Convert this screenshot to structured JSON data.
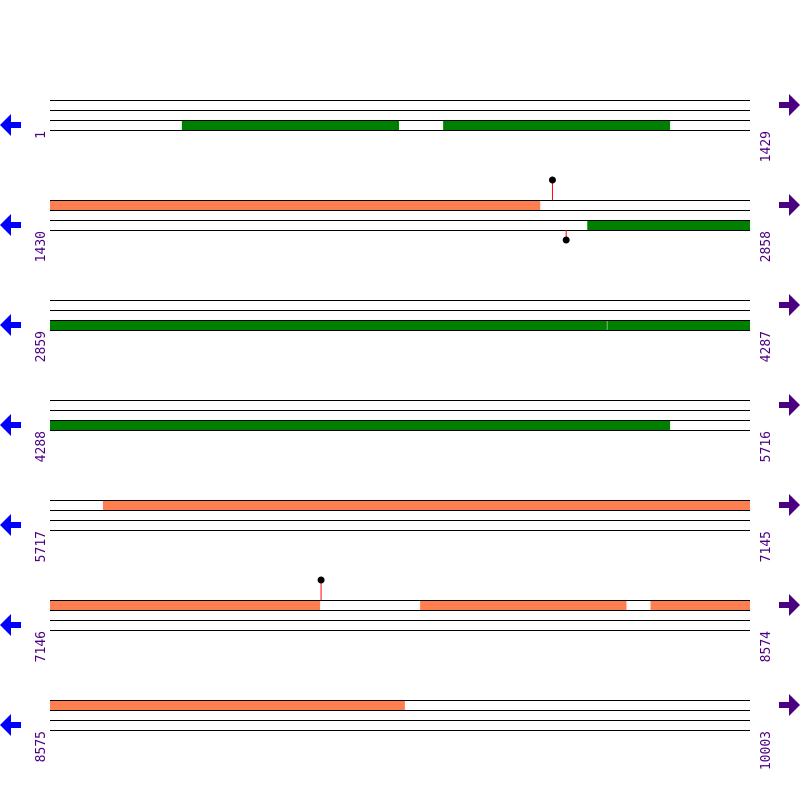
{
  "colors": {
    "forward_feature": "#ff7f50",
    "reverse_feature": "#008000",
    "lollipop_line": "#ff0000",
    "left_arrow": "#0000ff",
    "right_arrow": "#4b0082",
    "label": "#4b0082"
  },
  "icons": {
    "left": "arrow-left-icon",
    "right": "arrow-right-icon"
  },
  "rows": [
    {
      "start": "1",
      "end": "1429",
      "features": [
        {
          "track": "bottom",
          "from": 270,
          "to": 713,
          "color": "#008000"
        },
        {
          "track": "bottom",
          "from": 803,
          "to": 1266,
          "color": "#008000"
        }
      ],
      "markers": []
    },
    {
      "start": "1430",
      "end": "2858",
      "features": [
        {
          "track": "top",
          "from": 1430,
          "to": 2430,
          "color": "#ff7f50"
        },
        {
          "track": "bottom",
          "from": 2526,
          "to": 2858,
          "color": "#008000"
        }
      ],
      "markers": [
        {
          "track": "top",
          "pos": 2455
        },
        {
          "track": "bottom",
          "pos": 2483
        }
      ]
    },
    {
      "start": "2859",
      "end": "4287",
      "features": [
        {
          "track": "bottom",
          "from": 2859,
          "to": 3995,
          "color": "#008000"
        },
        {
          "track": "bottom",
          "from": 3996,
          "to": 4287,
          "color": "#008000"
        }
      ],
      "markers": []
    },
    {
      "start": "4288",
      "end": "5716",
      "features": [
        {
          "track": "bottom",
          "from": 4288,
          "to": 5553,
          "color": "#008000"
        }
      ],
      "markers": []
    },
    {
      "start": "5717",
      "end": "7145",
      "features": [
        {
          "track": "top",
          "from": 5825,
          "to": 7145,
          "color": "#ff7f50"
        }
      ],
      "markers": []
    },
    {
      "start": "7146",
      "end": "8574",
      "features": [
        {
          "track": "top",
          "from": 7146,
          "to": 7697,
          "color": "#ff7f50"
        },
        {
          "track": "top",
          "from": 7901,
          "to": 8322,
          "color": "#ff7f50"
        },
        {
          "track": "top",
          "from": 8371,
          "to": 8574,
          "color": "#ff7f50"
        }
      ],
      "markers": [
        {
          "track": "top",
          "pos": 7699
        }
      ]
    },
    {
      "start": "8575",
      "end": "10003",
      "features": [
        {
          "track": "top",
          "from": 8575,
          "to": 9299,
          "color": "#ff7f50"
        }
      ],
      "markers": []
    }
  ]
}
